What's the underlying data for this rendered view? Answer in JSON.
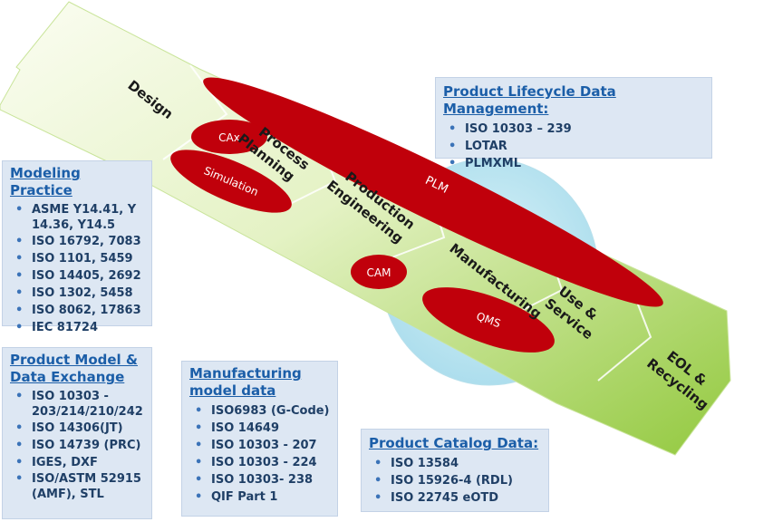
{
  "stages": [
    "Design",
    "Process Planning",
    "Production Engineering",
    "Manufacturing",
    "Use & Service",
    "EOL & Recycling"
  ],
  "stage_lines": {
    "design": [
      "Design"
    ],
    "process": [
      "Process",
      "Planning"
    ],
    "production": [
      "Production",
      "Engineering"
    ],
    "manufacturing": [
      "Manufacturing"
    ],
    "use": [
      "Use &",
      "Service"
    ],
    "eol": [
      "EOL &",
      "Recycling"
    ]
  },
  "ellipses": {
    "plm": "PLM",
    "cax": "CAx",
    "simulation": "Simulation",
    "cam": "CAM",
    "qms": "QMS"
  },
  "boxes": {
    "plm": {
      "title": "Product Lifecycle Data Management:",
      "items": [
        "ISO 10303 – 239",
        "LOTAR",
        "PLMXML"
      ]
    },
    "modeling": {
      "title": "Modeling Practice",
      "items": [
        "ASME Y14.41, Y 14.36, Y14.5",
        "ISO 16792, 7083",
        "ISO 1101, 5459",
        "ISO 14405, 2692",
        "ISO 1302, 5458",
        "ISO 8062, 17863",
        "IEC 81724"
      ]
    },
    "product_model": {
      "title": "Product Model & Data Exchange",
      "items": [
        "ISO 10303 - 203/214/210/242",
        "ISO 14306(JT)",
        "ISO 14739 (PRC)",
        "IGES, DXF",
        "ISO/ASTM 52915 (AMF), STL"
      ]
    },
    "manufacturing": {
      "title": "Manufacturing model data",
      "items": [
        "ISO6983 (G-Code)",
        "ISO 14649",
        "ISO 10303 - 207",
        "ISO 10303 - 224",
        "ISO 10303- 238",
        "QIF Part 1"
      ]
    },
    "catalog": {
      "title": "Product Catalog Data:",
      "items": [
        "ISO 13584",
        "ISO 15926-4 (RDL)",
        "ISO 22745 eOTD"
      ]
    }
  },
  "colors": {
    "arrow_light": "#f6fbe6",
    "arrow_dark": "#8fc53a",
    "ellipse_red": "#c0000b",
    "circle_blue": "#bfe7f2",
    "box_bg": "#dde7f3",
    "title_blue": "#1b5ea8"
  }
}
